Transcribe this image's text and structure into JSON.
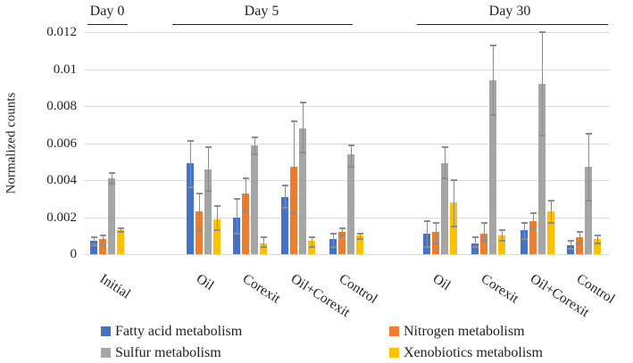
{
  "figure": {
    "background": "#ffffff",
    "gridline_color": "#d9d9d9",
    "error_bar_color": "#8c8c8c",
    "text_color": "#1f1f1f"
  },
  "chart_data": {
    "type": "bar",
    "title": "",
    "xlabel": "",
    "ylabel": "Normalized counts",
    "ylim": [
      0,
      0.012
    ],
    "ytick_values": [
      0,
      0.002,
      0.004,
      0.006,
      0.008,
      0.01,
      0.012
    ],
    "ytick_labels": [
      "0",
      "0.002",
      "0.004",
      "0.006",
      "0.008",
      "0.01",
      "0.012"
    ],
    "grid": true,
    "legend_position": "bottom",
    "error_bars": true,
    "day_sections": [
      {
        "label": "Day 0",
        "categories": [
          "Initial"
        ]
      },
      {
        "label": "Day 5",
        "categories": [
          "Oil",
          "Corexit",
          "Oil+Corexit",
          "Control"
        ]
      },
      {
        "label": "Day 30",
        "categories": [
          "Oil",
          "Corexit",
          "Oil+Corexit",
          "Control"
        ]
      }
    ],
    "categories": [
      "Initial",
      "Oil",
      "Corexit",
      "Oil+Corexit",
      "Control",
      "Oil",
      "Corexit",
      "Oil+Corexit",
      "Control"
    ],
    "series": [
      {
        "name": "Fatty acid metabolism",
        "color": "#4472C4",
        "values": [
          0.0007,
          0.0049,
          0.002,
          0.0031,
          0.0008,
          0.0011,
          0.0006,
          0.0013,
          0.0005
        ],
        "err_high": [
          0.0009,
          0.0061,
          0.003,
          0.0037,
          0.0011,
          0.0018,
          0.0009,
          0.0017,
          0.0007
        ],
        "err_low": [
          0.0005,
          0.0036,
          0.0011,
          0.0025,
          0.0004,
          0.0004,
          0.0004,
          0.0008,
          0.0003
        ]
      },
      {
        "name": "Nitrogen metabolism",
        "color": "#ED7D31",
        "values": [
          0.0008,
          0.0023,
          0.0033,
          0.0047,
          0.0012,
          0.0012,
          0.0011,
          0.0018,
          0.0009
        ],
        "err_high": [
          0.001,
          0.0033,
          0.0041,
          0.0072,
          0.0014,
          0.0017,
          0.0017,
          0.0022,
          0.0012
        ],
        "err_low": [
          0.0005,
          0.0013,
          0.0023,
          0.0022,
          0.001,
          0.0006,
          0.0007,
          0.0014,
          0.0006
        ]
      },
      {
        "name": "Sulfur metabolism",
        "color": "#A5A5A5",
        "values": [
          0.0041,
          0.0046,
          0.0059,
          0.0068,
          0.0054,
          0.0049,
          0.0094,
          0.0092,
          0.0047
        ],
        "err_high": [
          0.0044,
          0.0058,
          0.0063,
          0.0082,
          0.0059,
          0.0058,
          0.0113,
          0.012,
          0.0065
        ],
        "err_low": [
          0.0038,
          0.0034,
          0.0054,
          0.0055,
          0.0047,
          0.0041,
          0.0075,
          0.0064,
          0.0029
        ]
      },
      {
        "name": "Xenobiotics metabolism",
        "color": "#FFC000",
        "values": [
          0.0013,
          0.0019,
          0.0006,
          0.0007,
          0.001,
          0.0028,
          0.001,
          0.0023,
          0.0008
        ],
        "err_high": [
          0.0014,
          0.0026,
          0.0009,
          0.0009,
          0.0011,
          0.004,
          0.0013,
          0.0029,
          0.001
        ],
        "err_low": [
          0.0012,
          0.0013,
          0.0004,
          0.0004,
          0.0008,
          0.0015,
          0.0007,
          0.0017,
          0.0006
        ]
      }
    ]
  }
}
